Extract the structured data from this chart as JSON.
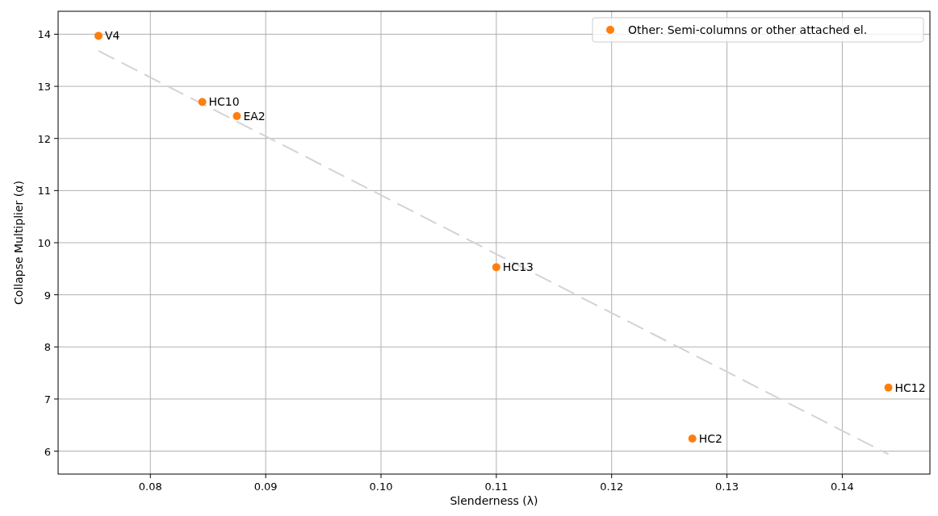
{
  "chart_data": {
    "type": "scatter",
    "xlabel": "Slenderness (λ)",
    "ylabel": "Collapse Multiplier (α)",
    "xlim": [
      0.072,
      0.1476
    ],
    "ylim": [
      5.56,
      14.44
    ],
    "xticks": [
      {
        "value": 0.08,
        "label": "0.08"
      },
      {
        "value": 0.09,
        "label": "0.09"
      },
      {
        "value": 0.1,
        "label": "0.10"
      },
      {
        "value": 0.11,
        "label": "0.11"
      },
      {
        "value": 0.12,
        "label": "0.12"
      },
      {
        "value": 0.13,
        "label": "0.13"
      },
      {
        "value": 0.14,
        "label": "0.14"
      }
    ],
    "yticks": [
      6,
      7,
      8,
      9,
      10,
      11,
      12,
      13,
      14
    ],
    "grid": true,
    "legend": "top right",
    "marker": "circle",
    "series": [
      {
        "name": "Other: Semi-columns or other attached el.",
        "color": "#ff7f0e",
        "x": [
          0.0755,
          0.0845,
          0.0875,
          0.11,
          0.127,
          0.144
        ],
        "values": [
          13.97,
          12.7,
          12.43,
          9.53,
          6.24,
          7.22
        ]
      },
      {
        "type": "line",
        "color": "#d3d3d3",
        "line_style": "dashed",
        "marker": "none",
        "x": [
          0.0755,
          0.144
        ],
        "values": [
          13.68,
          5.94
        ]
      }
    ],
    "annotations": [
      {
        "text": "V4",
        "x": 0.0755,
        "y": 13.97
      },
      {
        "text": "HC10",
        "x": 0.0845,
        "y": 12.7
      },
      {
        "text": "EA2",
        "x": 0.0875,
        "y": 12.43
      },
      {
        "text": "HC13",
        "x": 0.11,
        "y": 9.53
      },
      {
        "text": "HC2",
        "x": 0.127,
        "y": 6.24
      },
      {
        "text": "HC12",
        "x": 0.144,
        "y": 7.22
      }
    ]
  }
}
